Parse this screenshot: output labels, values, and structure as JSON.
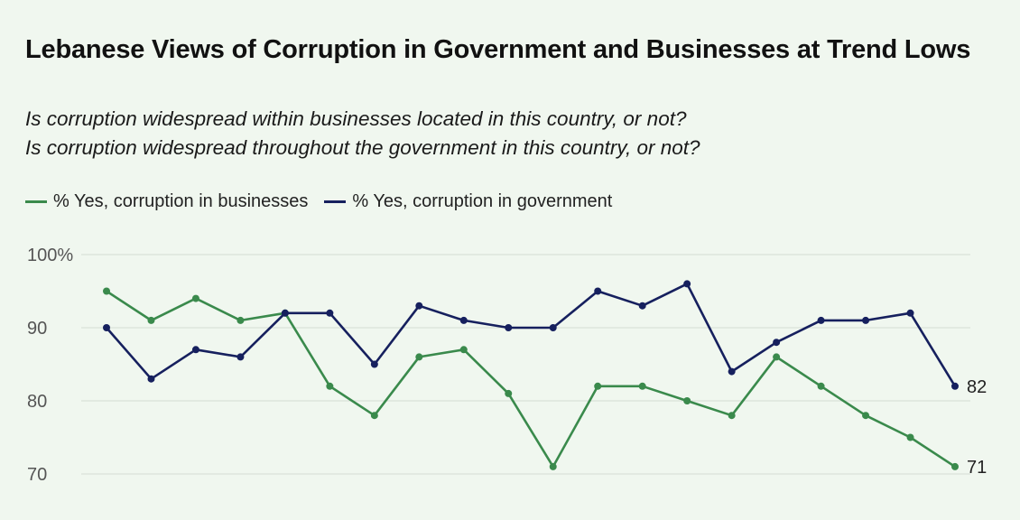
{
  "chart_data": {
    "type": "line",
    "title": "Lebanese Views of Corruption in Government and Businesses at Trend Lows",
    "subtitle_lines": [
      "Is corruption widespread within businesses located in this country, or not?",
      "Is corruption widespread throughout the government in this country, or not?"
    ],
    "legend_position": "top-left",
    "grid": true,
    "ylim": [
      70,
      100
    ],
    "yticks": [
      {
        "value": 100,
        "label": "100%"
      },
      {
        "value": 90,
        "label": "90"
      },
      {
        "value": 80,
        "label": "80"
      },
      {
        "value": 70,
        "label": "70"
      }
    ],
    "series": [
      {
        "name": "% Yes, corruption in businesses",
        "color": "#3a8a4c",
        "values": [
          95,
          91,
          94,
          91,
          92,
          82,
          78,
          86,
          87,
          81,
          71,
          82,
          82,
          80,
          78,
          86,
          82,
          78,
          75,
          71
        ],
        "end_label": "71"
      },
      {
        "name": "% Yes, corruption in government",
        "color": "#16205e",
        "values": [
          90,
          83,
          87,
          86,
          92,
          92,
          85,
          93,
          91,
          90,
          90,
          95,
          93,
          96,
          84,
          88,
          91,
          91,
          92,
          82
        ],
        "end_label": "82"
      }
    ]
  }
}
